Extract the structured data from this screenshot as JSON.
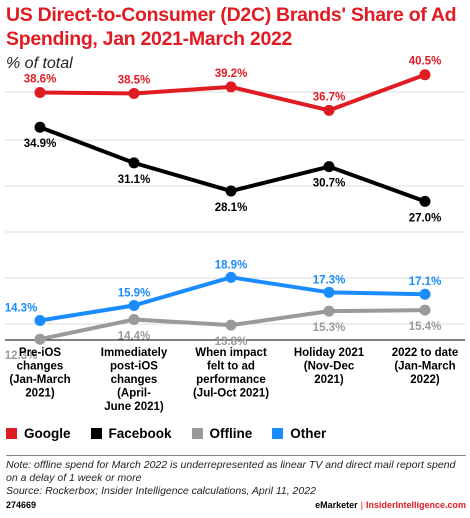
{
  "title": "US Direct-to-Consumer (D2C) Brands' Share of Ad Spending, Jan 2021-March 2022",
  "subtitle": "% of total",
  "chart_data": {
    "type": "line",
    "categories": [
      [
        "Pre-iOS",
        "changes",
        "(Jan-March",
        "2021)"
      ],
      [
        "Immediately",
        "post-iOS",
        "changes",
        "(April-",
        "June 2021)"
      ],
      [
        "When impact",
        "felt to ad",
        "performance",
        "(Jul-Oct 2021)"
      ],
      [
        "Holiday 2021",
        "(Nov-Dec",
        "2021)"
      ],
      [
        "2022 to date",
        "(Jan-March",
        "2022)"
      ]
    ],
    "unit": "%",
    "series": [
      {
        "name": "Google",
        "color": "#e01b22",
        "values": [
          38.6,
          38.5,
          39.2,
          36.7,
          40.5
        ],
        "labels": [
          "38.6%",
          "38.5%",
          "39.2%",
          "36.7%",
          "40.5%"
        ]
      },
      {
        "name": "Facebook",
        "color": "#000000",
        "values": [
          34.9,
          31.1,
          28.1,
          30.7,
          27.0
        ],
        "labels": [
          "34.9%",
          "31.1%",
          "28.1%",
          "30.7%",
          "27.0%"
        ]
      },
      {
        "name": "Offline",
        "color": "#9a9a9a",
        "values": [
          12.3,
          14.4,
          13.8,
          15.3,
          15.4
        ],
        "labels": [
          "12.3%",
          "14.4%",
          "13.8%",
          "15.3%",
          "15.4%"
        ]
      },
      {
        "name": "Other",
        "color": "#1a8cff",
        "values": [
          14.3,
          15.9,
          18.9,
          17.3,
          17.1
        ],
        "labels": [
          "14.3%",
          "15.9%",
          "18.9%",
          "17.3%",
          "17.1%"
        ]
      }
    ],
    "ylim": [
      10,
      42
    ],
    "grid": "horizontal",
    "legend": "bottom-left"
  },
  "legend": [
    "Google",
    "Facebook",
    "Offline",
    "Other"
  ],
  "notes": [
    "Note: offline spend for March 2022 is underrepresented as linear TV and direct mail report spend on a delay of 1 week or more",
    "Source: Rockerbox; Insider Intelligence calculations, April 11, 2022"
  ],
  "footer": {
    "id": "274669",
    "brand_left": "eMarketer",
    "brand_sep": "|",
    "brand_right": "InsiderIntelligence.com"
  }
}
